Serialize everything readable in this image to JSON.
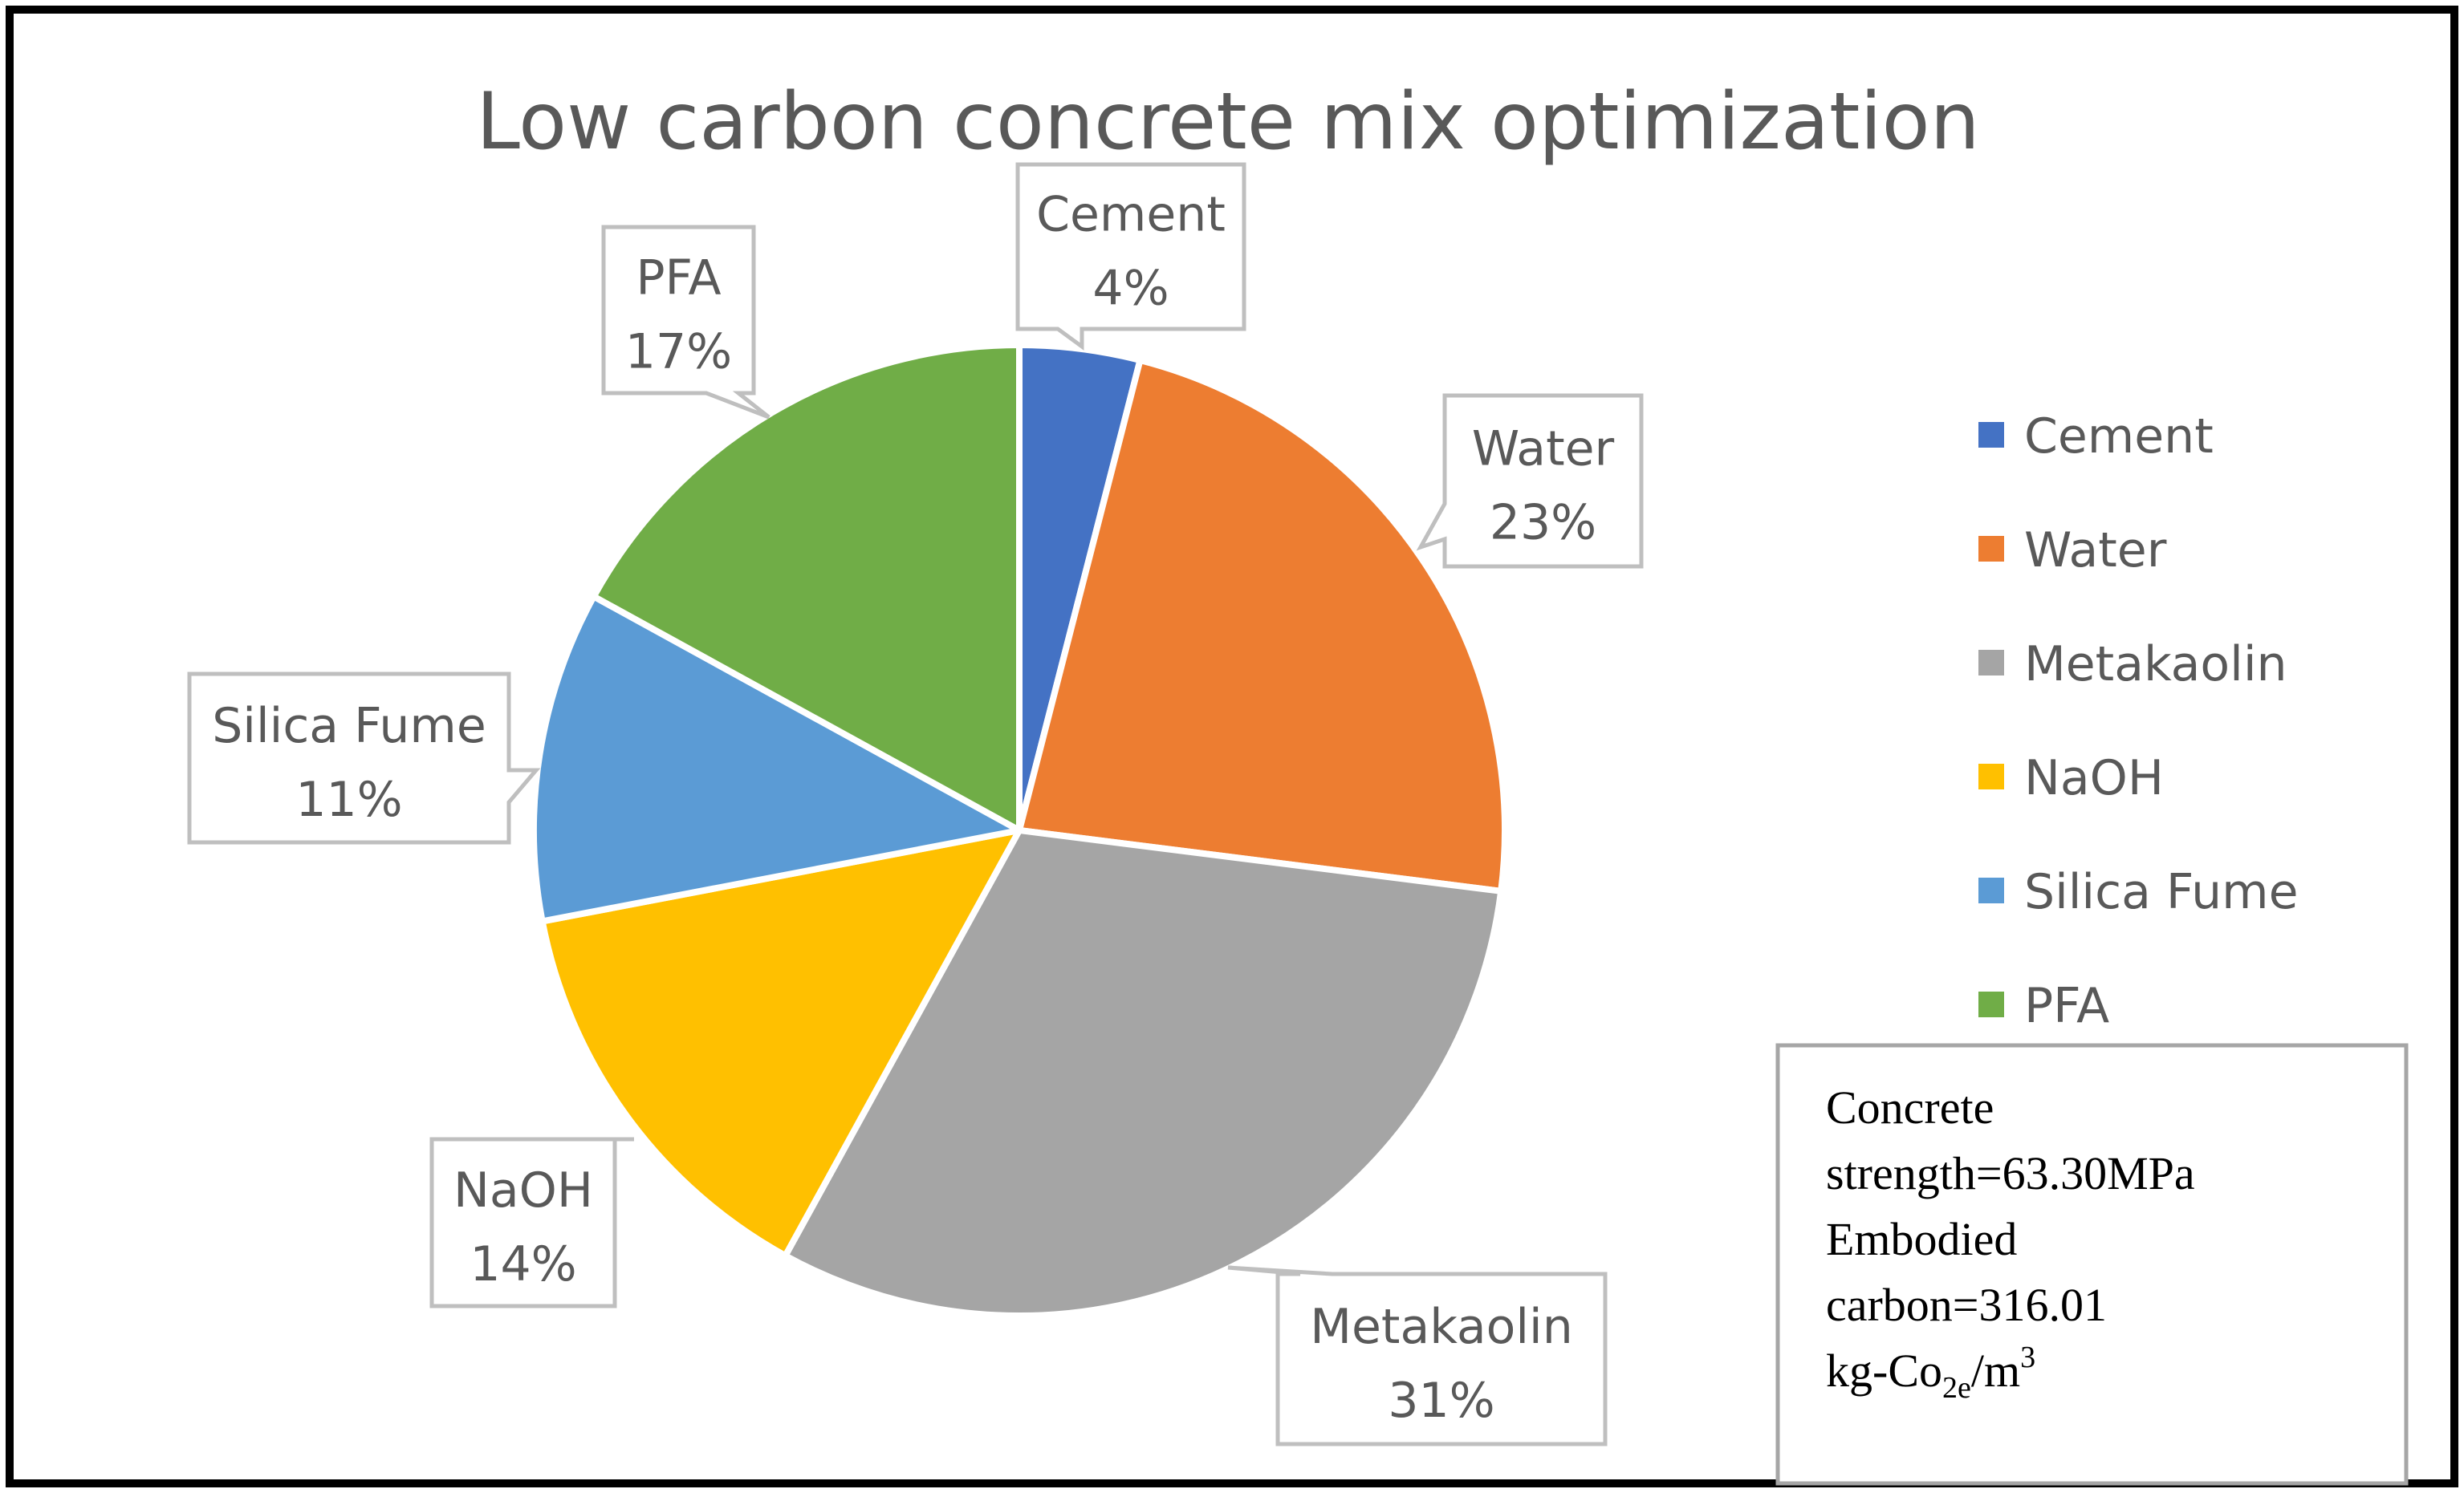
{
  "chart_data": {
    "type": "pie",
    "title": "Low carbon  concrete mix optimization",
    "categories": [
      "Cement",
      "Water",
      "Metakaolin",
      "NaOH",
      "Silica Fume",
      "PFA"
    ],
    "values": [
      4,
      23,
      31,
      14,
      11,
      17
    ],
    "unit": "%",
    "colors": [
      "#4472C4",
      "#ED7D31",
      "#A5A5A5",
      "#FFC000",
      "#5B9BD5",
      "#70AD47"
    ],
    "data_labels": [
      {
        "name": "Cement",
        "pct": "4%"
      },
      {
        "name": "Water",
        "pct": "23%"
      },
      {
        "name": "Metakaolin",
        "pct": "31%"
      },
      {
        "name": "NaOH",
        "pct": "14%"
      },
      {
        "name": "Silica Fume",
        "pct": "11%"
      },
      {
        "name": "PFA",
        "pct": "17%"
      }
    ],
    "legend": {
      "placement": "right",
      "items": [
        "Cement",
        "Water",
        "Metakaolin",
        "NaOH",
        "Silica Fume",
        "PFA"
      ]
    }
  },
  "annotation": {
    "line1": "Concrete",
    "line2": "strength=63.30MPa",
    "line3": "Embodied",
    "line4": "carbon=316.01",
    "line5_prefix": "kg-Co",
    "line5_sub": "2e",
    "line5_mid": "/m",
    "line5_sup": "3"
  }
}
